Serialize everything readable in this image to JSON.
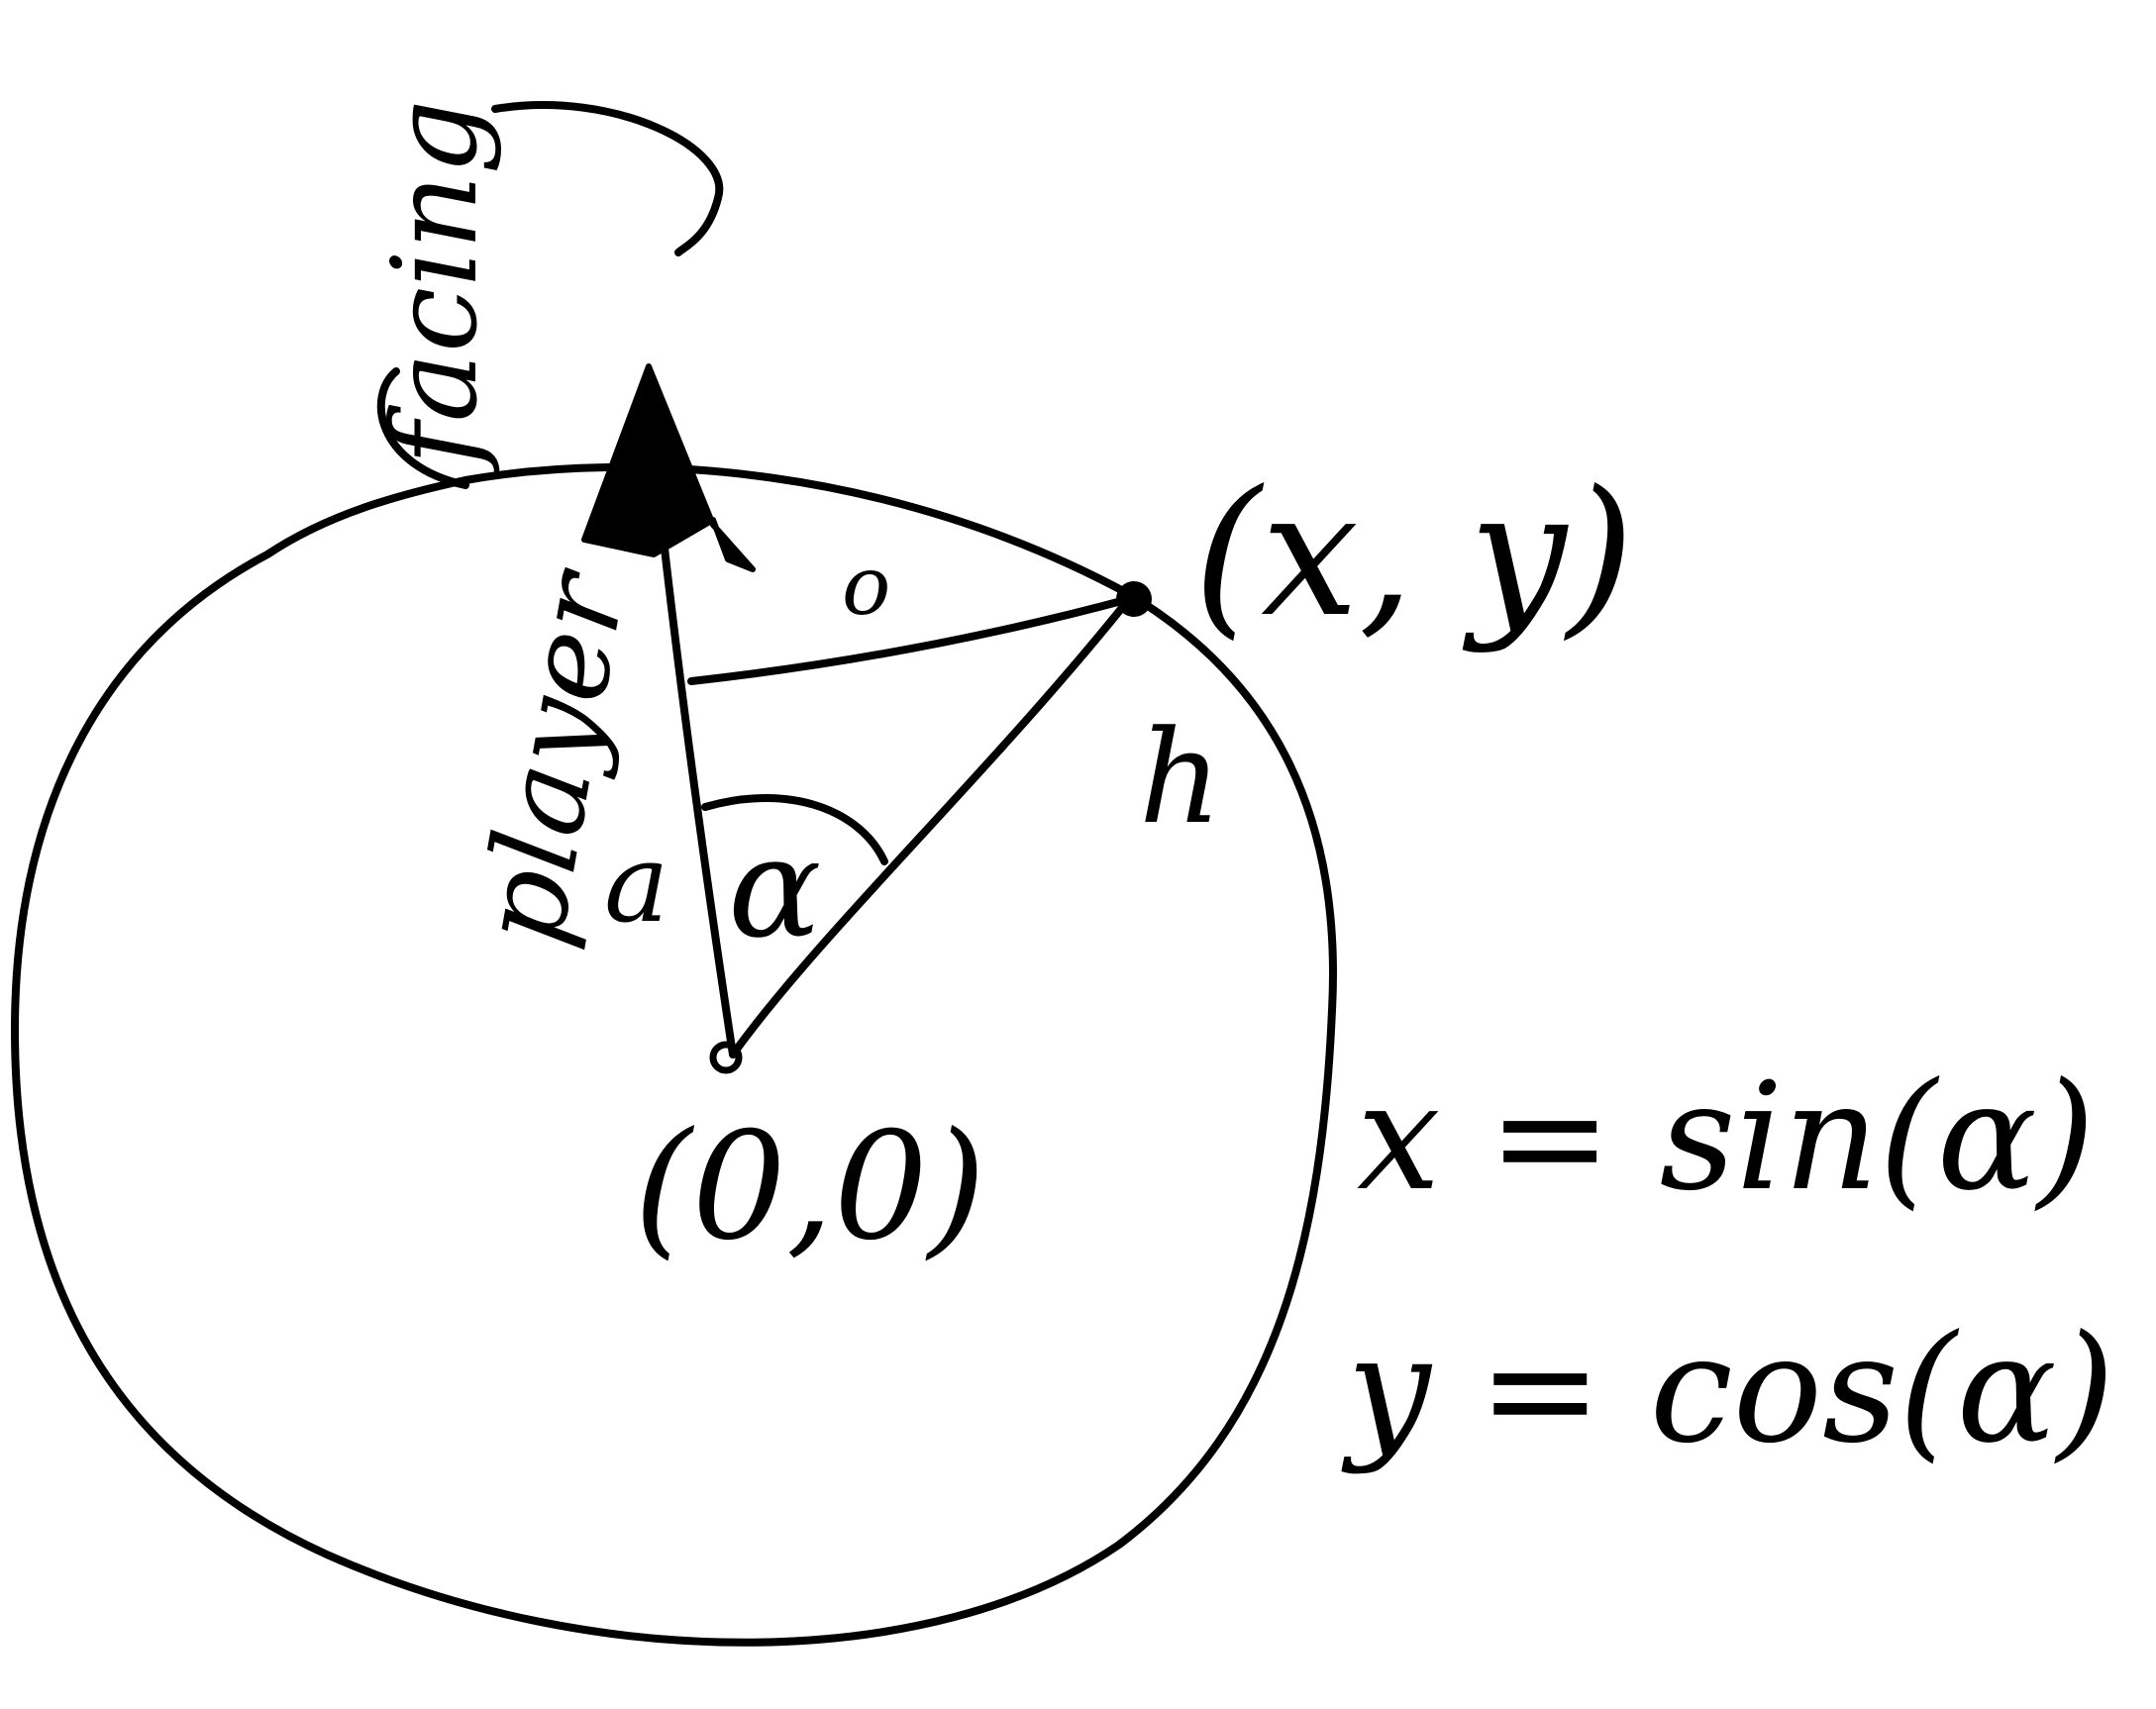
{
  "diagram": {
    "ink_color": "#000000",
    "background": "#ffffff",
    "labels": {
      "facing": "facing",
      "player": "player",
      "point": "(x, y)",
      "origin": "(0,0)",
      "opposite": "o",
      "adjacent": "a",
      "hypotenuse": "h",
      "angle": "α",
      "formula_x": "x = sin(α)",
      "formula_y": "y = cos(α)"
    }
  }
}
